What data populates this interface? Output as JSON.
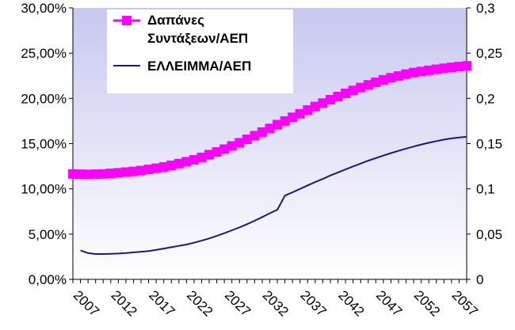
{
  "chart_data": {
    "type": "line",
    "x": [
      2006,
      2007,
      2008,
      2009,
      2010,
      2011,
      2012,
      2013,
      2014,
      2015,
      2016,
      2017,
      2018,
      2019,
      2020,
      2021,
      2022,
      2023,
      2024,
      2025,
      2026,
      2027,
      2028,
      2029,
      2030,
      2031,
      2032,
      2033,
      2034,
      2035,
      2036,
      2037,
      2038,
      2039,
      2040,
      2041,
      2042,
      2043,
      2044,
      2045,
      2046,
      2047,
      2048,
      2049,
      2050,
      2051,
      2052,
      2053,
      2054,
      2055,
      2056,
      2057,
      2058
    ],
    "x_tick_labels": [
      "2007",
      "2012",
      "2017",
      "2022",
      "2027",
      "2032",
      "2037",
      "2042",
      "2047",
      "2052",
      "2057"
    ],
    "y_left_tick_labels": [
      "0,00%",
      "5,00%",
      "10,00%",
      "15,00%",
      "20,00%",
      "25,00%",
      "30,00%"
    ],
    "y_right_tick_labels": [
      "0",
      "0,05",
      "0,1",
      "0,15",
      "0,2",
      "0,25",
      "0,3"
    ],
    "ylim": [
      0,
      0.3
    ],
    "series": [
      {
        "name": "Δαπάνες Συντάξεων/ΑΕΠ",
        "color": "#ff00ff",
        "marker": "square",
        "axis": "left",
        "values": [
          0.1165,
          0.1162,
          0.116,
          0.1162,
          0.1165,
          0.1172,
          0.1178,
          0.1185,
          0.1193,
          0.1203,
          0.1215,
          0.1228,
          0.1243,
          0.126,
          0.128,
          0.13,
          0.1322,
          0.1348,
          0.1378,
          0.1408,
          0.144,
          0.1475,
          0.151,
          0.1548,
          0.1588,
          0.1628,
          0.1668,
          0.171,
          0.175,
          0.179,
          0.183,
          0.1872,
          0.191,
          0.1948,
          0.1985,
          0.202,
          0.2055,
          0.2088,
          0.212,
          0.215,
          0.2178,
          0.2205,
          0.2228,
          0.2248,
          0.2268,
          0.2285,
          0.2298,
          0.231,
          0.2322,
          0.2333,
          0.2343,
          0.2352,
          0.236
        ]
      },
      {
        "name": "ΕΛΛΕΙΜΜΑ/ΑΕΠ",
        "color": "#1a1a7e",
        "axis": "right",
        "values": [
          null,
          0.032,
          0.029,
          0.028,
          0.028,
          0.0282,
          0.0285,
          0.029,
          0.0298,
          0.0305,
          0.0312,
          0.0325,
          0.034,
          0.0355,
          0.037,
          0.0385,
          0.0405,
          0.0428,
          0.0452,
          0.048,
          0.051,
          0.0542,
          0.0575,
          0.061,
          0.0648,
          0.0688,
          0.073,
          0.077,
          0.0925,
          0.0962,
          0.1,
          0.1038,
          0.1075,
          0.111,
          0.1148,
          0.1182,
          0.1215,
          0.1248,
          0.128,
          0.1312,
          0.134,
          0.1368,
          0.1395,
          0.142,
          0.1445,
          0.1468,
          0.149,
          0.151,
          0.1528,
          0.1545,
          0.1558,
          0.1568,
          0.1575
        ]
      }
    ],
    "grid": false,
    "plot_background": "gradient lavender to white",
    "legend_position": "top-left"
  }
}
